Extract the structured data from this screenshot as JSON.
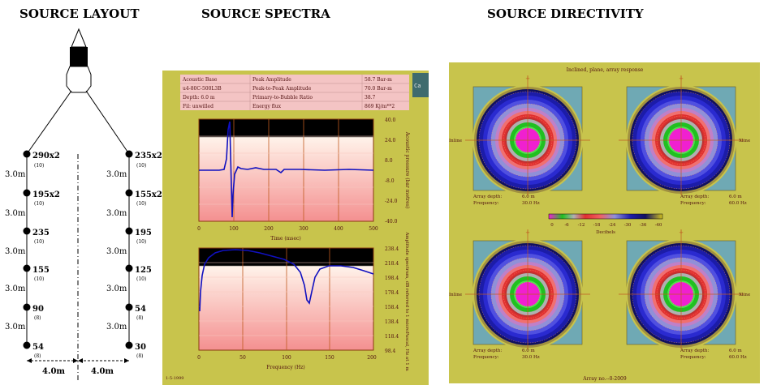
{
  "headings": {
    "layout": "SOURCE LAYOUT",
    "spectra": "SOURCE SPECTRA",
    "directivity": "SOURCE DIRECTIVITY"
  },
  "layout": {
    "left_string": [
      {
        "label": "290x2",
        "sub": "(10)"
      },
      {
        "label": "195x2",
        "sub": "(10)"
      },
      {
        "label": "235",
        "sub": "(10)"
      },
      {
        "label": "155",
        "sub": "(10)"
      },
      {
        "label": "90",
        "sub": "(8)"
      },
      {
        "label": "54",
        "sub": "(8)"
      }
    ],
    "right_string": [
      {
        "label": "235x2",
        "sub": "(10)"
      },
      {
        "label": "155x2",
        "sub": "(10)"
      },
      {
        "label": "195",
        "sub": "(10)"
      },
      {
        "label": "125",
        "sub": "(10)"
      },
      {
        "label": "54",
        "sub": "(8)"
      },
      {
        "label": "30",
        "sub": "(8)"
      }
    ],
    "spacing_labels": [
      "3.0m",
      "3.0m",
      "3.0m",
      "3.0m",
      "3.0m"
    ],
    "separation_left": "4.0m",
    "separation_right": "4.0m"
  },
  "spectra": {
    "table": [
      [
        "Acoustic Base",
        "Peak Amplitude",
        "58.7 Bar-m"
      ],
      [
        "u4-80C-500L3B",
        "Peak-to-Peak Amplitude",
        "70.0 Bar-m"
      ],
      [
        "Depth: 6.0 m",
        "Primary-to-Bubble Ratio",
        "38.7"
      ],
      [
        "Fil: unwilled",
        "Energy flux",
        "869 Kj/m**2"
      ]
    ],
    "side_button": "Ca",
    "plot1": {
      "xlabel": "Time (msec)",
      "xticks": [
        "0",
        "100",
        "200",
        "300",
        "400",
        "500"
      ],
      "yticks": [
        "40.0",
        "24.0",
        "8.0",
        "-8.0",
        "-24.0",
        "-40.0"
      ],
      "ylabel": "Acoustic pressure (bar metres)"
    },
    "plot2": {
      "xlabel": "Frequency (Hz)",
      "xticks": [
        "0",
        "50",
        "100",
        "150",
        "200"
      ],
      "yticks": [
        "238.4",
        "218.4",
        "198.4",
        "178.4",
        "158.4",
        "138.4",
        "118.4",
        "98.4"
      ],
      "ylabel": "Amplitude spectrum, dB referred to 1 microPascal, Hz at 1 m"
    },
    "footer": "1-5-1999"
  },
  "directivity": {
    "title": "Inclined, plane, array response",
    "side_labels": [
      "Inline",
      "Xline"
    ],
    "panels": [
      {
        "depth_label": "Array depth:",
        "depth": "6.0 m",
        "freq_label": "Frequency:",
        "freq": "30.0 Hz"
      },
      {
        "depth_label": "Array depth:",
        "depth": "6.0 m",
        "freq_label": "Frequency:",
        "freq": "60.0 Hz"
      },
      {
        "depth_label": "Array depth:",
        "depth": "6.0 m",
        "freq_label": "Frequency:",
        "freq": "30.0 Hz"
      },
      {
        "depth_label": "Array depth:",
        "depth": "6.0 m",
        "freq_label": "Frequency:",
        "freq": "60.0 Hz"
      }
    ],
    "colorbar_ticks": [
      "0",
      "-6",
      "-12",
      "-18",
      "-24",
      "-30",
      "-36",
      "-40"
    ],
    "colorbar_label": "Decibels",
    "footer": "Array no.--0-2009",
    "colors": {
      "outer": "#6fa9b4",
      "ring_blue": "#1c1ca8",
      "ring_purple": "#9090d8",
      "ring_red": "#e03030",
      "ring_green": "#20c020",
      "core": "#f020d0"
    }
  }
}
